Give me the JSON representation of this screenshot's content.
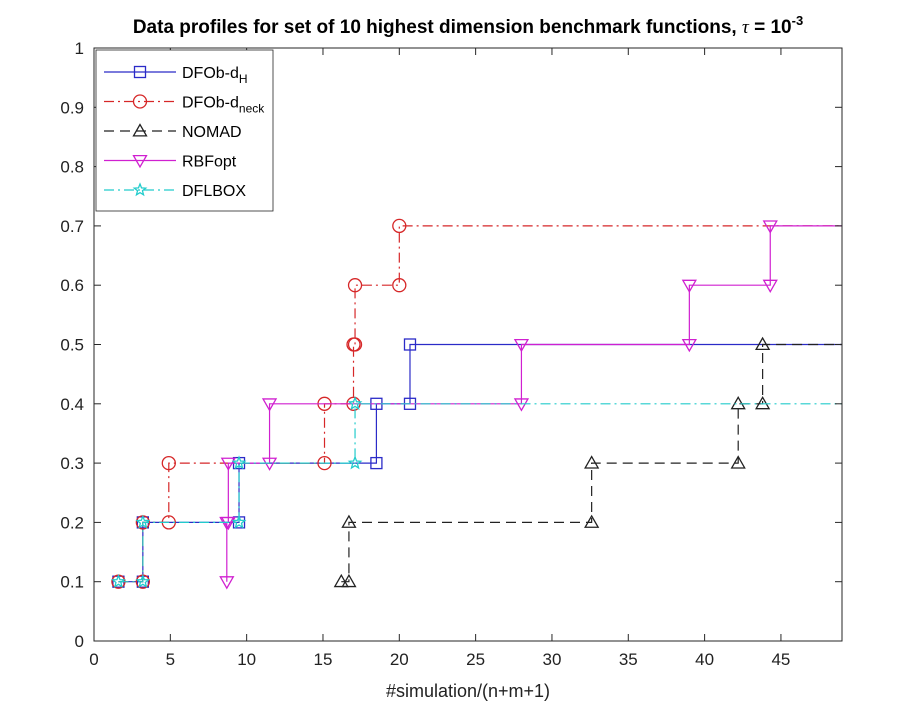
{
  "chart_data": {
    "type": "line",
    "title": {
      "prefix": "Data profiles for set of 10 highest dimension benchmark functions, ",
      "tau": "τ",
      "equals": " = 10",
      "exponent": "-3"
    },
    "xlabel": "#simulation/(n+m+1)",
    "ylabel": "",
    "xlim": [
      0,
      49
    ],
    "ylim": [
      0,
      1
    ],
    "xticks": [
      0,
      5,
      10,
      15,
      20,
      25,
      30,
      35,
      40,
      45
    ],
    "yticks": [
      0,
      0.1,
      0.2,
      0.3,
      0.4,
      0.5,
      0.6,
      0.7,
      0.8,
      0.9,
      1
    ],
    "ytick_labels": [
      "0",
      "0.1",
      "0.2",
      "0.3",
      "0.4",
      "0.5",
      "0.6",
      "0.7",
      "0.8",
      "0.9",
      "1"
    ],
    "grid": false,
    "legend_position": "top-left",
    "series": [
      {
        "name": "DFOb-d",
        "subscript": "H",
        "color": "#2b2bc8",
        "dash": "solid",
        "marker": "square",
        "points": [
          [
            1.6,
            0.1
          ],
          [
            3.2,
            0.1
          ],
          [
            3.2,
            0.2
          ],
          [
            9.5,
            0.2
          ],
          [
            9.5,
            0.3
          ],
          [
            18.5,
            0.3
          ],
          [
            18.5,
            0.4
          ],
          [
            20.7,
            0.4
          ],
          [
            20.7,
            0.5
          ],
          [
            49,
            0.5
          ]
        ]
      },
      {
        "name": "DFOb-d",
        "subscript": "neck",
        "color": "#d62728",
        "dash": "dashdot",
        "marker": "circle",
        "points": [
          [
            1.6,
            0.1
          ],
          [
            3.2,
            0.1
          ],
          [
            3.2,
            0.2
          ],
          [
            4.9,
            0.2
          ],
          [
            4.9,
            0.3
          ],
          [
            15.1,
            0.3
          ],
          [
            15.1,
            0.4
          ],
          [
            17.0,
            0.4
          ],
          [
            17.0,
            0.5
          ],
          [
            17.1,
            0.5
          ],
          [
            17.1,
            0.6
          ],
          [
            20.0,
            0.6
          ],
          [
            20.0,
            0.7
          ],
          [
            49,
            0.7
          ]
        ]
      },
      {
        "name": "NOMAD",
        "subscript": "",
        "color": "#222222",
        "dash": "dashed",
        "marker": "triangle-up",
        "points": [
          [
            16.2,
            0.1
          ],
          [
            16.7,
            0.1
          ],
          [
            16.7,
            0.2
          ],
          [
            32.6,
            0.2
          ],
          [
            32.6,
            0.3
          ],
          [
            42.2,
            0.3
          ],
          [
            42.2,
            0.4
          ],
          [
            43.8,
            0.4
          ],
          [
            43.8,
            0.5
          ],
          [
            49,
            0.5
          ]
        ]
      },
      {
        "name": "RBFopt",
        "subscript": "",
        "color": "#d020d0",
        "dash": "solid",
        "marker": "triangle-down",
        "points": [
          [
            8.7,
            0.1
          ],
          [
            8.7,
            0.2
          ],
          [
            8.8,
            0.2
          ],
          [
            8.8,
            0.3
          ],
          [
            11.5,
            0.3
          ],
          [
            11.5,
            0.4
          ],
          [
            28.0,
            0.4
          ],
          [
            28.0,
            0.5
          ],
          [
            39.0,
            0.5
          ],
          [
            39.0,
            0.6
          ],
          [
            44.3,
            0.6
          ],
          [
            44.3,
            0.7
          ],
          [
            49,
            0.7
          ]
        ]
      },
      {
        "name": "DFLBOX",
        "subscript": "",
        "color": "#22cccc",
        "dash": "dashdot",
        "marker": "star",
        "points": [
          [
            1.6,
            0.1
          ],
          [
            3.2,
            0.1
          ],
          [
            3.2,
            0.2
          ],
          [
            9.5,
            0.2
          ],
          [
            9.5,
            0.3
          ],
          [
            17.1,
            0.3
          ],
          [
            17.1,
            0.4
          ],
          [
            49,
            0.4
          ]
        ]
      }
    ]
  }
}
